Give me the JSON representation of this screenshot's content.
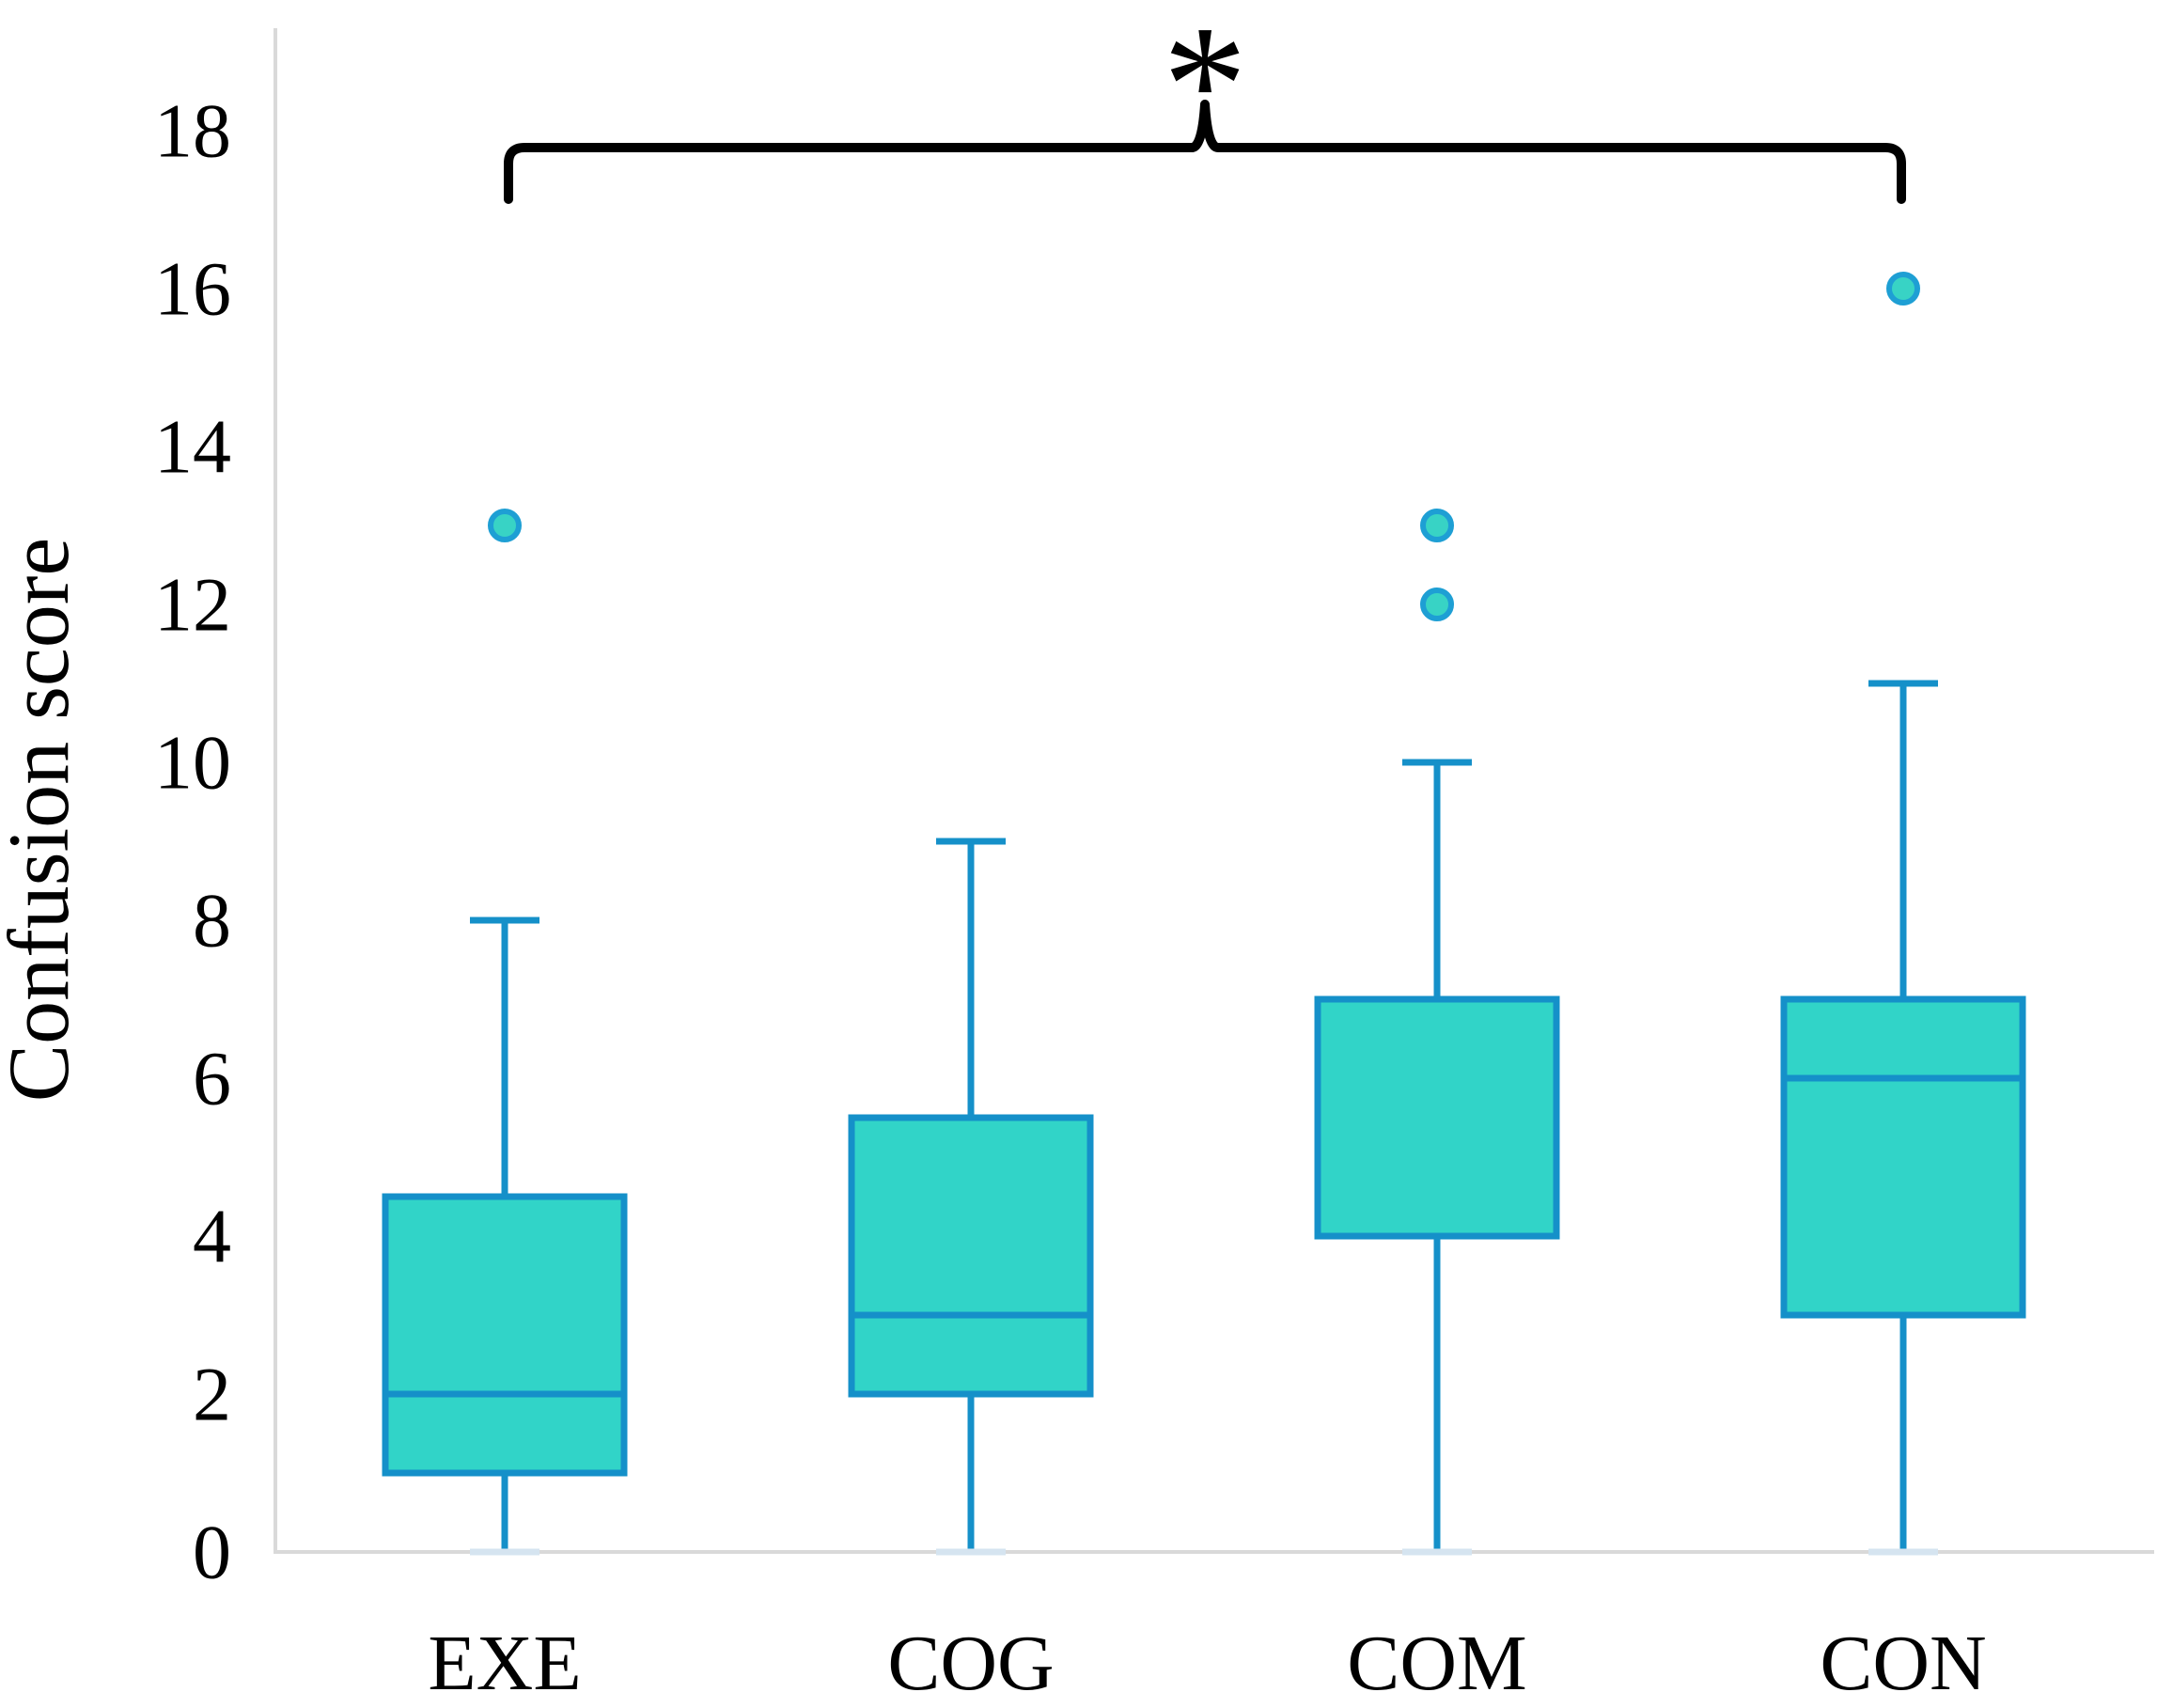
{
  "chart_data": {
    "type": "box",
    "title": "",
    "xlabel": "",
    "ylabel": "Confusion score",
    "categories": [
      "EXE",
      "COG",
      "COM",
      "CON"
    ],
    "ylim": [
      0,
      18
    ],
    "yticks": [
      0,
      2,
      4,
      6,
      8,
      10,
      12,
      14,
      16,
      18
    ],
    "grid": false,
    "legend": "none",
    "series": [
      {
        "name": "EXE",
        "min": 0,
        "q1": 1,
        "median": 2,
        "q3": 4.5,
        "whisker_high": 8,
        "outliers": [
          13
        ]
      },
      {
        "name": "COG",
        "min": 0,
        "q1": 2,
        "median": 3,
        "q3": 5.5,
        "whisker_high": 9,
        "outliers": []
      },
      {
        "name": "COM",
        "min": 0,
        "q1": 4,
        "median": 4,
        "q3": 7,
        "whisker_high": 10,
        "outliers": [
          12,
          13
        ]
      },
      {
        "name": "CON",
        "min": 0,
        "q1": 3,
        "median": 6,
        "q3": 7,
        "whisker_high": 11,
        "outliers": [
          16
        ]
      }
    ],
    "significance": {
      "from": "EXE",
      "to": "CON",
      "label": "*"
    },
    "colors": {
      "box_fill": "#31D4C8",
      "box_stroke": "#1590C9",
      "outlier_fill": "#38D3C5",
      "outlier_stroke": "#1E9FD4",
      "axis_line": "#D9D9D9",
      "zero_cap": "#D5E4F0",
      "bracket": "#000000",
      "text": "#000000"
    }
  }
}
